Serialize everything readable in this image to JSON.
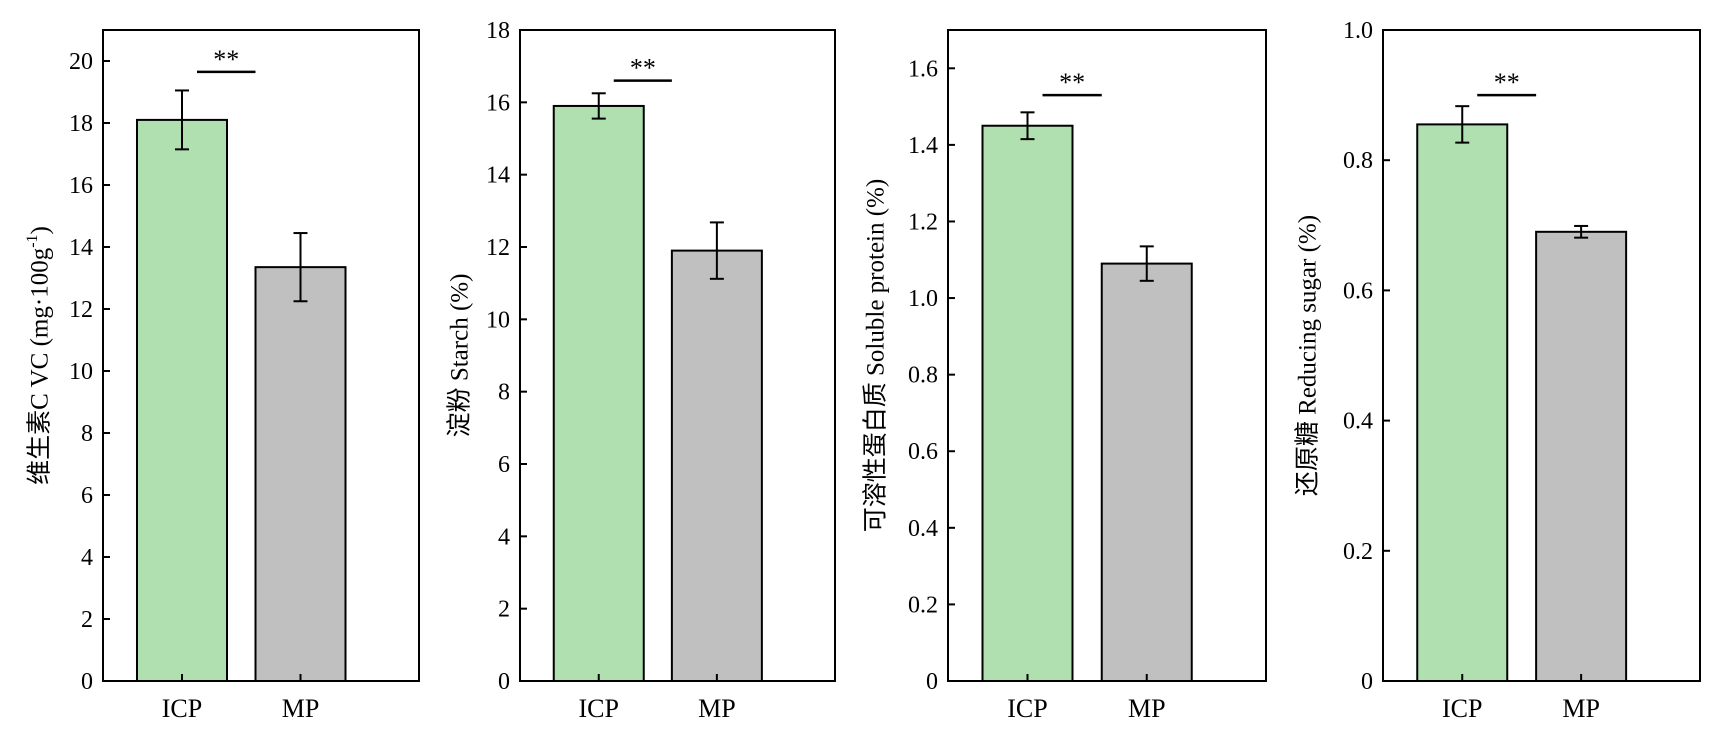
{
  "colors": {
    "ICP": "#b0e0b0",
    "MP": "#c0c0c0",
    "axis": "#000000"
  },
  "chart_data": [
    {
      "type": "bar",
      "categories": [
        "ICP",
        "MP"
      ],
      "values": [
        18.1,
        13.35
      ],
      "errors": [
        0.95,
        1.1
      ],
      "ylabel": "维生素C VC (mg·100g",
      "ylabel_sup": "-1",
      "ylabel_end": ")",
      "ylim": [
        0,
        21
      ],
      "yticks": [
        0,
        2,
        4,
        6,
        8,
        10,
        12,
        14,
        16,
        18,
        20
      ],
      "significance": "**",
      "sig_level": 19.65,
      "decimals": 0
    },
    {
      "type": "bar",
      "categories": [
        "ICP",
        "MP"
      ],
      "values": [
        15.9,
        11.9
      ],
      "errors": [
        0.35,
        0.78
      ],
      "ylabel": "淀粉 Starch (%)",
      "ylim": [
        0,
        18
      ],
      "yticks": [
        0,
        2,
        4,
        6,
        8,
        10,
        12,
        14,
        16,
        18
      ],
      "significance": "**",
      "sig_level": 16.6,
      "decimals": 0
    },
    {
      "type": "bar",
      "categories": [
        "ICP",
        "MP"
      ],
      "values": [
        1.45,
        1.09
      ],
      "errors": [
        0.035,
        0.045
      ],
      "ylabel": "可溶性蛋白质 Soluble protein (%)",
      "ylim": [
        0,
        1.7
      ],
      "yticks": [
        0,
        0.2,
        0.4,
        0.6,
        0.8,
        1.0,
        1.2,
        1.4,
        1.6
      ],
      "significance": "**",
      "sig_level": 1.53,
      "decimals": 1
    },
    {
      "type": "bar",
      "categories": [
        "ICP",
        "MP"
      ],
      "values": [
        0.855,
        0.69
      ],
      "errors": [
        0.028,
        0.009
      ],
      "ylabel": "还原糖 Reducing sugar (%)",
      "ylim": [
        0,
        1.0
      ],
      "yticks": [
        0,
        0.2,
        0.4,
        0.6,
        0.8,
        1.0
      ],
      "significance": "**",
      "sig_level": 0.9,
      "decimals": 1
    }
  ]
}
